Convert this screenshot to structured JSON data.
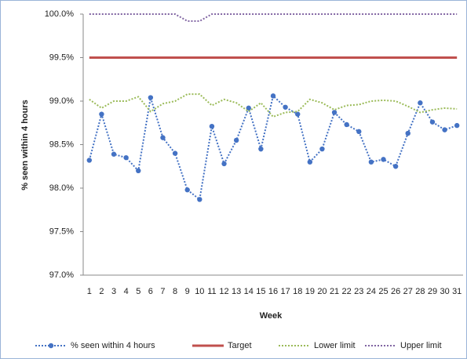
{
  "chart_data": {
    "type": "line",
    "x_label": "Week",
    "y_label": "% seen within 4 hours",
    "categories": [
      "1",
      "2",
      "3",
      "4",
      "5",
      "6",
      "7",
      "8",
      "9",
      "10",
      "11",
      "12",
      "13",
      "14",
      "15",
      "16",
      "17",
      "18",
      "19",
      "20",
      "21",
      "22",
      "23",
      "24",
      "25",
      "26",
      "27",
      "28",
      "29",
      "30",
      "31"
    ],
    "series": [
      {
        "name": "% seen within 4 hours",
        "color": "#4472c4",
        "style": "dotted",
        "markers": true,
        "values": [
          98.32,
          98.85,
          98.39,
          98.35,
          98.2,
          99.04,
          98.58,
          98.4,
          97.98,
          97.87,
          98.71,
          98.28,
          98.55,
          98.92,
          98.45,
          99.06,
          98.93,
          98.85,
          98.3,
          98.45,
          98.87,
          98.73,
          98.65,
          98.3,
          98.33,
          98.25,
          98.63,
          98.98,
          98.76,
          98.67,
          98.72
        ]
      },
      {
        "name": "Target",
        "color": "#c0504d",
        "style": "solid",
        "markers": false,
        "values": [
          99.5,
          99.5,
          99.5,
          99.5,
          99.5,
          99.5,
          99.5,
          99.5,
          99.5,
          99.5,
          99.5,
          99.5,
          99.5,
          99.5,
          99.5,
          99.5,
          99.5,
          99.5,
          99.5,
          99.5,
          99.5,
          99.5,
          99.5,
          99.5,
          99.5,
          99.5,
          99.5,
          99.5,
          99.5,
          99.5,
          99.5
        ]
      },
      {
        "name": "Lower limit",
        "color": "#9bbb59",
        "style": "dotted",
        "markers": false,
        "values": [
          99.02,
          98.92,
          99.0,
          99.0,
          99.05,
          98.88,
          98.97,
          99.0,
          99.08,
          99.08,
          98.95,
          99.02,
          98.98,
          98.88,
          98.98,
          98.82,
          98.87,
          98.88,
          99.02,
          98.98,
          98.9,
          98.95,
          98.96,
          99.0,
          99.01,
          99.0,
          98.94,
          98.87,
          98.9,
          98.92,
          98.91
        ]
      },
      {
        "name": "Upper limit",
        "color": "#8064a2",
        "style": "dotted",
        "markers": false,
        "values": [
          100,
          100,
          100,
          100,
          100,
          100,
          100,
          100,
          99.92,
          99.92,
          100,
          100,
          100,
          100,
          100,
          100,
          100,
          100,
          100,
          100,
          100,
          100,
          100,
          100,
          100,
          100,
          100,
          100,
          100,
          100,
          100
        ]
      }
    ],
    "ylim": [
      97,
      100
    ],
    "yticks": [
      {
        "value": 97,
        "label": "97.0%"
      },
      {
        "value": 97.5,
        "label": "97.5%"
      },
      {
        "value": 98,
        "label": "98.0%"
      },
      {
        "value": 98.5,
        "label": "98.5%"
      },
      {
        "value": 99,
        "label": "99.0%"
      },
      {
        "value": 99.5,
        "label": "99.5%"
      },
      {
        "value": 100,
        "label": "100.0%"
      }
    ],
    "grid": false,
    "legend": "bottom"
  }
}
